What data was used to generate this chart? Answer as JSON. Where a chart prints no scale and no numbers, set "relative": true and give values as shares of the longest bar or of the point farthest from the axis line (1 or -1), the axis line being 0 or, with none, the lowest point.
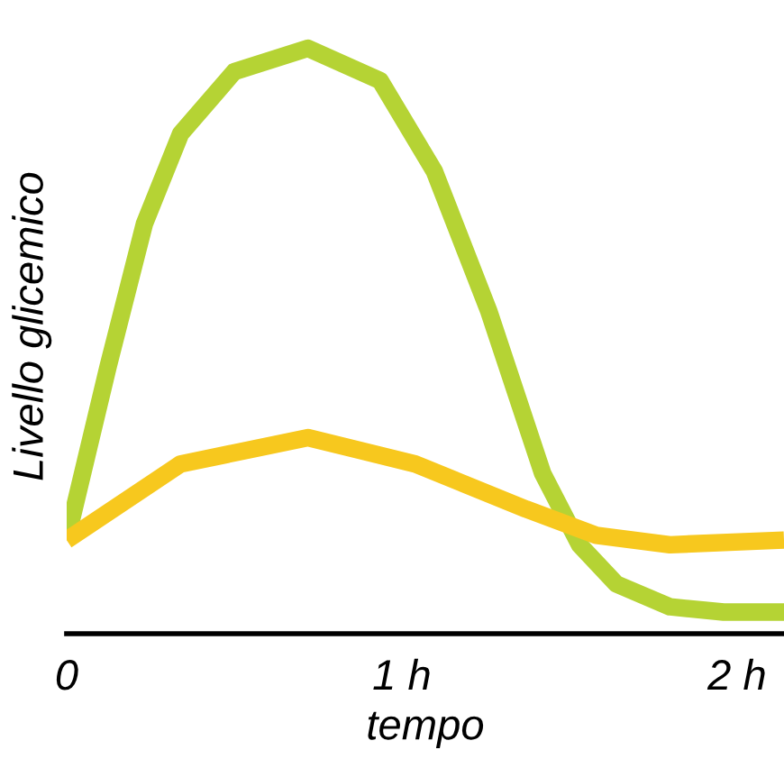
{
  "chart_data": {
    "type": "line",
    "relative": true,
    "xlabel": "tempo",
    "ylabel": "Livello glicemico",
    "xlim": [
      0,
      2.14
    ],
    "xticks": [
      0,
      {
        "value": 1,
        "label": "1 h"
      },
      {
        "value": 2,
        "label": "2 h"
      }
    ],
    "grid": false,
    "legend": false,
    "marker": "none",
    "line_style": "solid",
    "series": [
      {
        "color": "#b5d334",
        "x": [
          0,
          0.124,
          0.232,
          0.34,
          0.5,
          0.72,
          0.935,
          1.097,
          1.26,
          1.42,
          1.53,
          1.64,
          1.8,
          1.96,
          2.14
        ],
        "values": [
          0.16,
          0.457,
          0.7,
          0.854,
          0.96,
          1.0,
          0.945,
          0.79,
          0.55,
          0.274,
          0.152,
          0.085,
          0.046,
          0.037,
          0.037
        ]
      },
      {
        "color": "#f7c81e",
        "x": [
          0,
          0.34,
          0.72,
          1.04,
          1.37,
          1.58,
          1.8,
          2.14
        ],
        "values": [
          0.16,
          0.29,
          0.335,
          0.29,
          0.213,
          0.168,
          0.152,
          0.16
        ]
      }
    ]
  }
}
